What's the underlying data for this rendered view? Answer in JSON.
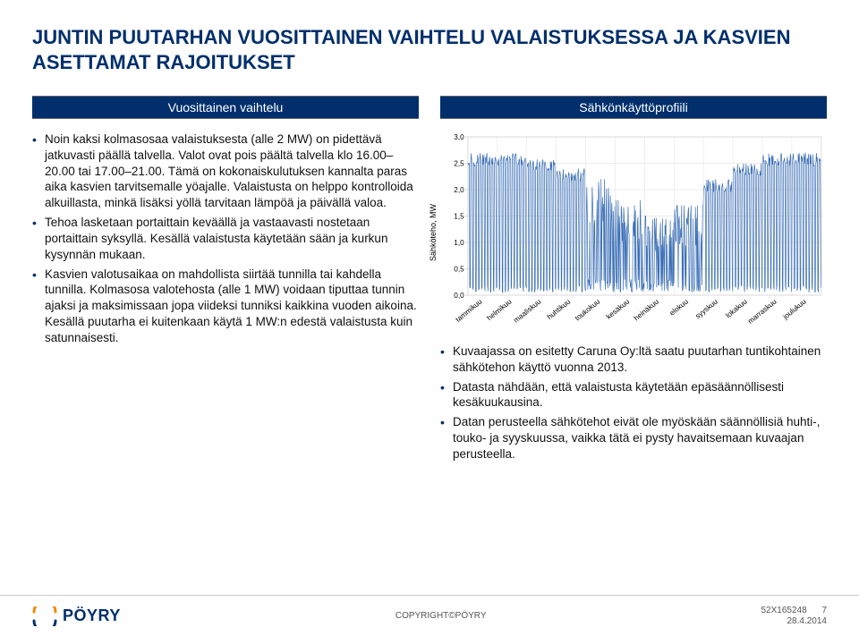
{
  "title": "JUNTIN PUUTARHAN VUOSITTAINEN VAIHTELU VALAISTUKSESSA JA KASVIEN ASETTAMAT RAJOITUKSET",
  "left": {
    "header": "Vuosittainen vaihtelu",
    "bullets": [
      "Noin kaksi kolmasosaa valaistuksesta (alle 2 MW) on pidettävä jatkuvasti päällä talvella. Valot ovat pois päältä talvella klo 16.00–20.00 tai 17.00–21.00. Tämä on kokonaiskulutuksen kannalta paras aika kasvien tarvitsemalle yöajalle. Valaistusta on helppo kontrolloida alkuillasta, minkä lisäksi yöllä tarvitaan lämpöä ja päivällä valoa.",
      "Tehoa lasketaan portaittain keväällä ja vastaavasti nostetaan portaittain syksyllä. Kesällä valaistusta käytetään sään ja kurkun kysynnän mukaan.",
      "Kasvien valotusaikaa on mahdollista siirtää tunnilla tai kahdella tunnilla. Kolmasosa valotehosta (alle 1 MW) voidaan tiputtaa tunnin ajaksi ja maksimissaan jopa viideksi tunniksi kaikkina vuoden aikoina. Kesällä puutarha ei kuitenkaan käytä 1 MW:n edestä valaistusta kuin satunnaisesti."
    ]
  },
  "right": {
    "header": "Sähkönkäyttöprofiili",
    "chart": {
      "type": "line",
      "ylabel": "Sähköteho, MW",
      "ylim": [
        0.0,
        3.0
      ],
      "ytick_step": 0.5,
      "yticks": [
        "0,0",
        "0,5",
        "1,0",
        "1,5",
        "2,0",
        "2,5",
        "3,0"
      ],
      "months": [
        "tammikuu",
        "helmikuu",
        "maaliskuu",
        "huhtikuu",
        "toukokuu",
        "kesäkuu",
        "heinäkuu",
        "elokuu",
        "syyskuu",
        "lokakuu",
        "marraskuu",
        "joulukuu"
      ],
      "line_color": "#3b6fb6",
      "grid_color": "#d9d9d9",
      "background_color": "#ffffff",
      "axis_color": "#bfbfbf",
      "month_max_envelope": [
        2.7,
        2.7,
        2.6,
        2.4,
        2.2,
        1.8,
        1.5,
        1.7,
        2.2,
        2.5,
        2.7,
        2.7
      ],
      "month_typical_low": [
        0.05,
        0.05,
        0.05,
        0.05,
        0.05,
        0.05,
        0.05,
        0.05,
        0.05,
        0.05,
        0.05,
        0.05
      ],
      "label_fontsize": 8
    },
    "bullets": [
      "Kuvaajassa on esitetty Caruna Oy:ltä saatu puutarhan tuntikohtainen sähkötehon käyttö vuonna 2013.",
      "Datasta nähdään, että valaistusta käytetään epäsäännöllisesti kesäkuukausina.",
      "Datan perusteella sähkötehot eivät ole myöskään säännöllisiä huhti-, touko- ja syyskuussa, vaikka tätä ei pysty havaitsemaan kuvaajan perusteella."
    ]
  },
  "footer": {
    "logo_text": "PÖYRY",
    "center": "COPYRIGHT©PÖYRY",
    "doc_id": "52X165248",
    "date": "28.4.2014",
    "page": "7",
    "logo_orange": "#f18a00",
    "logo_blue": "#002f6c"
  }
}
